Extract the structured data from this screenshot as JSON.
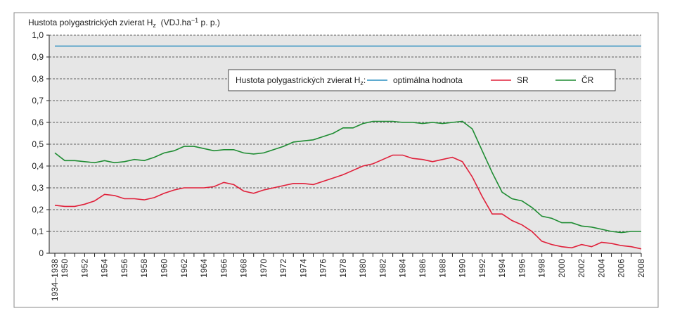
{
  "chart_data": {
    "type": "line",
    "title_parts": [
      "Hustota polygastrických zvierat H",
      "z",
      "  (VDJ.ha",
      "−1",
      " p. p.)"
    ],
    "legend_title_parts": [
      "Hustota polygastrických zvierat H",
      "z",
      ":"
    ],
    "categories": [
      "1934–1938",
      "1950",
      null,
      "1952",
      null,
      "1954",
      null,
      "1956",
      null,
      "1958",
      null,
      "1960",
      null,
      "1962",
      null,
      "1964",
      null,
      "1966",
      null,
      "1968",
      null,
      "1970",
      null,
      "1972",
      null,
      "1974",
      null,
      "1976",
      null,
      "1978",
      null,
      "1980",
      null,
      "1982",
      null,
      "1984",
      null,
      "1986",
      null,
      "1988",
      null,
      "1990",
      null,
      "1992",
      null,
      "1994",
      null,
      "1996",
      null,
      "1998",
      null,
      "2000",
      null,
      "2002",
      null,
      "2004",
      null,
      "2006",
      null,
      "2008"
    ],
    "series": [
      {
        "name": "optimálna hodnota",
        "color": "#2a8fc0",
        "values": [
          0.95,
          0.95,
          0.95,
          0.95,
          0.95,
          0.95,
          0.95,
          0.95,
          0.95,
          0.95,
          0.95,
          0.95,
          0.95,
          0.95,
          0.95,
          0.95,
          0.95,
          0.95,
          0.95,
          0.95,
          0.95,
          0.95,
          0.95,
          0.95,
          0.95,
          0.95,
          0.95,
          0.95,
          0.95,
          0.95,
          0.95,
          0.95,
          0.95,
          0.95,
          0.95,
          0.95,
          0.95,
          0.95,
          0.95,
          0.95,
          0.95,
          0.95,
          0.95,
          0.95,
          0.95,
          0.95,
          0.95,
          0.95,
          0.95,
          0.95,
          0.95,
          0.95,
          0.95,
          0.95,
          0.95,
          0.95,
          0.95,
          0.95,
          0.95,
          0.95
        ]
      },
      {
        "name": "SR",
        "color": "#e0203a",
        "values": [
          0.22,
          0.215,
          0.215,
          0.225,
          0.24,
          0.27,
          0.265,
          0.25,
          0.25,
          0.245,
          0.255,
          0.275,
          0.29,
          0.3,
          0.3,
          0.3,
          0.305,
          0.325,
          0.315,
          0.285,
          0.275,
          0.29,
          0.3,
          0.31,
          0.32,
          0.32,
          0.315,
          0.33,
          0.345,
          0.36,
          0.38,
          0.4,
          0.41,
          0.43,
          0.45,
          0.45,
          0.435,
          0.43,
          0.42,
          0.43,
          0.44,
          0.42,
          0.35,
          0.26,
          0.18,
          0.18,
          0.15,
          0.13,
          0.1,
          0.055,
          0.04,
          0.03,
          0.025,
          0.04,
          0.03,
          0.05,
          0.045,
          0.035,
          0.03,
          0.02
        ]
      },
      {
        "name": "ČR",
        "color": "#1e8c32",
        "values": [
          0.46,
          0.425,
          0.425,
          0.42,
          0.415,
          0.425,
          0.415,
          0.42,
          0.43,
          0.425,
          0.44,
          0.46,
          0.47,
          0.49,
          0.49,
          0.48,
          0.47,
          0.475,
          0.475,
          0.46,
          0.455,
          0.46,
          0.475,
          0.49,
          0.51,
          0.515,
          0.52,
          0.535,
          0.55,
          0.575,
          0.575,
          0.595,
          0.605,
          0.605,
          0.605,
          0.6,
          0.6,
          0.595,
          0.6,
          0.595,
          0.6,
          0.605,
          0.57,
          0.47,
          0.37,
          0.28,
          0.25,
          0.24,
          0.21,
          0.17,
          0.16,
          0.14,
          0.14,
          0.125,
          0.12,
          0.11,
          0.1,
          0.095,
          0.1,
          0.1
        ]
      }
    ],
    "ylim": [
      0,
      1
    ],
    "yticks": [
      0,
      {
        "value": 0.1,
        "label": "0,1"
      },
      {
        "value": 0.2,
        "label": "0,2"
      },
      {
        "value": 0.3,
        "label": "0,3"
      },
      {
        "value": 0.4,
        "label": "0,4"
      },
      {
        "value": 0.5,
        "label": "0,5"
      },
      {
        "value": 0.6,
        "label": "0,6"
      },
      {
        "value": 0.7,
        "label": "0,7"
      },
      {
        "value": 0.8,
        "label": "0,8"
      },
      {
        "value": 0.9,
        "label": "0,9"
      },
      {
        "value": 1,
        "label": "1,0"
      }
    ],
    "grid": true
  }
}
